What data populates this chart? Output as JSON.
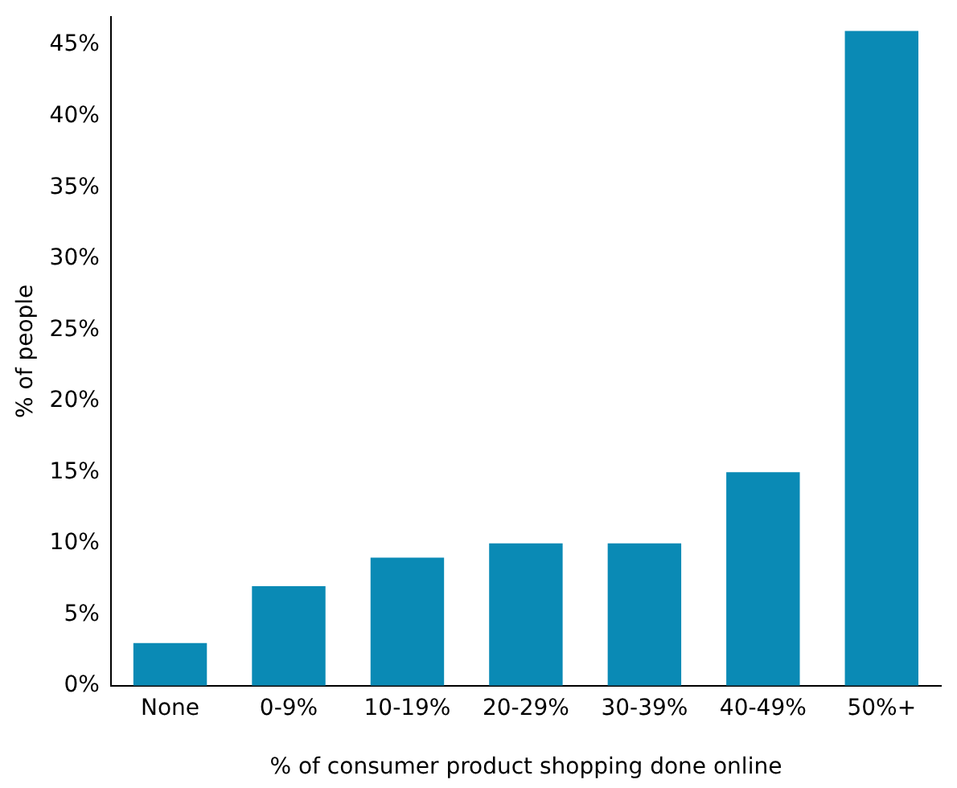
{
  "chart_data": {
    "type": "bar",
    "xlabel": "% of consumer product shopping done online",
    "ylabel": "% of people",
    "categories": [
      "None",
      "0-9%",
      "10-19%",
      "20-29%",
      "30-39%",
      "40-49%",
      "50%+"
    ],
    "values": [
      3,
      7,
      9,
      10,
      10,
      15,
      46
    ],
    "color": "#0a8ab5",
    "ylim": [
      0,
      47
    ],
    "yticks": [
      {
        "value": 0,
        "label": "0%"
      },
      {
        "value": 5,
        "label": "5%"
      },
      {
        "value": 10,
        "label": "10%"
      },
      {
        "value": 15,
        "label": "15%"
      },
      {
        "value": 20,
        "label": "20%"
      },
      {
        "value": 25,
        "label": "25%"
      },
      {
        "value": 30,
        "label": "30%"
      },
      {
        "value": 35,
        "label": "35%"
      },
      {
        "value": 40,
        "label": "40%"
      },
      {
        "value": 45,
        "label": "45%"
      }
    ],
    "grid": false,
    "legend": false
  }
}
